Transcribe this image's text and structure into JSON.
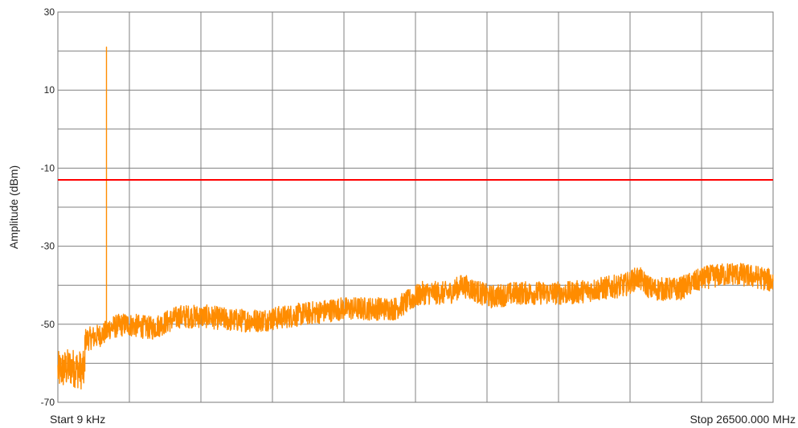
{
  "chart_data": {
    "type": "line",
    "title": "",
    "xlabel": "",
    "ylabel": "Amplitude (dBm)",
    "x_start_label": "Start 9 kHz",
    "x_stop_label": "Stop 26500.000 MHz",
    "x_unit": "MHz",
    "xlim": [
      0.009,
      26500
    ],
    "ylim": [
      -70,
      30
    ],
    "y_ticks": [
      30,
      10,
      -10,
      -30,
      -50,
      -70
    ],
    "x_divisions": 10,
    "y_divisions": 10,
    "grid": true,
    "legend": "none",
    "series": [
      {
        "color": "#ff8c00",
        "x": [
          0.009,
          500,
          1000,
          1000,
          1500,
          1800,
          1800,
          1800,
          1860,
          1860,
          2500,
          3500,
          4500,
          5500,
          6500,
          7500,
          8500,
          9500,
          10500,
          11500,
          12500,
          13500,
          14500,
          15000,
          16000,
          17000,
          18000,
          19000,
          20000,
          21000,
          21500,
          22000,
          23000,
          24000,
          25000,
          26000,
          26500
        ],
        "y": [
          -62,
          -61,
          -62,
          -54,
          -53,
          -52,
          21,
          -52,
          -52,
          -51,
          -50,
          -51,
          -48,
          -48,
          -49,
          -49,
          -48,
          -47,
          -46,
          -46,
          -46,
          -42,
          -42,
          -40,
          -43,
          -42,
          -42,
          -42,
          -41,
          -40,
          -38,
          -41,
          -41,
          -38,
          -37,
          -38,
          -39
        ]
      },
      {
        "name": "",
        "color": "#ff0000",
        "x": [
          0.009,
          26500
        ],
        "y": [
          -13,
          -13
        ]
      }
    ]
  }
}
